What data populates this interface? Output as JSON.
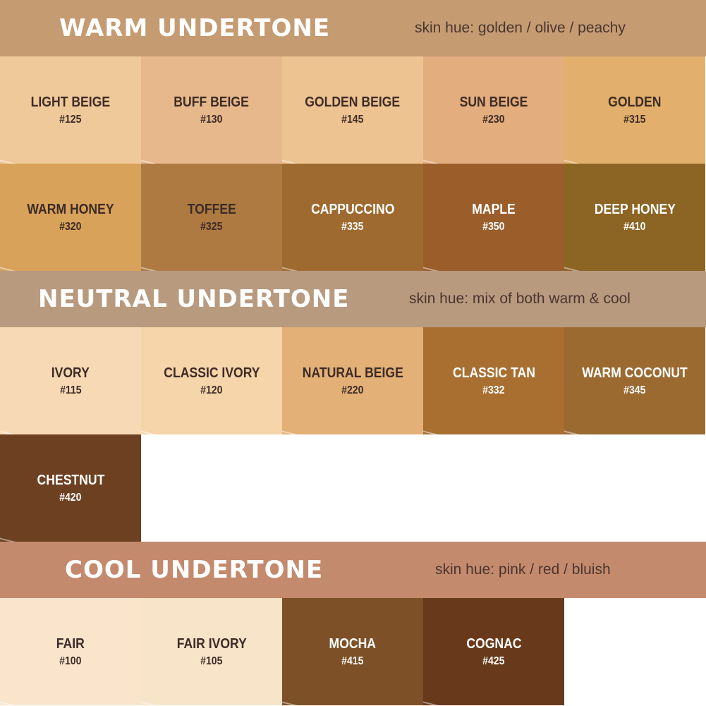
{
  "sections": [
    {
      "title": "WARM UNDERTONE",
      "hue": "skin hue: golden / olive / peachy",
      "color": "#c59b72",
      "rows": [
        [
          {
            "name": "LIGHT BEIGE",
            "code": "#125",
            "color": "#efc99a",
            "text": "dark"
          },
          {
            "name": "BUFF BEIGE",
            "code": "#130",
            "color": "#e6b88b",
            "text": "dark"
          },
          {
            "name": "GOLDEN BEIGE",
            "code": "#145",
            "color": "#edc391",
            "text": "dark"
          },
          {
            "name": "SUN BEIGE",
            "code": "#230",
            "color": "#e3ad7e",
            "text": "dark"
          },
          {
            "name": "GOLDEN",
            "code": "#315",
            "color": "#e2b06c",
            "text": "dark"
          }
        ],
        [
          {
            "name": "WARM HONEY",
            "code": "#320",
            "color": "#d9a25a",
            "text": "dark"
          },
          {
            "name": "TOFFEE",
            "code": "#325",
            "color": "#ae7a42",
            "text": "dark"
          },
          {
            "name": "CAPPUCCINO",
            "code": "#335",
            "color": "#9f6a30",
            "text": "light"
          },
          {
            "name": "MAPLE",
            "code": "#350",
            "color": "#9b5e2b",
            "text": "light"
          },
          {
            "name": "DEEP HONEY",
            "code": "#410",
            "color": "#8c6424",
            "text": "light"
          }
        ]
      ]
    },
    {
      "title": "NEUTRAL UNDERTONE",
      "hue": "skin hue: mix of both warm & cool",
      "color": "#b89a7f",
      "rows": [
        [
          {
            "name": "IVORY",
            "code": "#115",
            "color": "#f7dab5",
            "text": "dark"
          },
          {
            "name": "CLASSIC IVORY",
            "code": "#120",
            "color": "#f5d5a9",
            "text": "dark"
          },
          {
            "name": "NATURAL BEIGE",
            "code": "#220",
            "color": "#e3b078",
            "text": "dark"
          },
          {
            "name": "CLASSIC TAN",
            "code": "#332",
            "color": "#a86f31",
            "text": "light"
          },
          {
            "name": "WARM COCONUT",
            "code": "#345",
            "color": "#9b6a31",
            "text": "light"
          }
        ],
        [
          {
            "name": "CHESTNUT",
            "code": "#420",
            "color": "#6c4020",
            "text": "light"
          }
        ]
      ]
    },
    {
      "title": "COOL UNDERTONE",
      "hue": "skin hue: pink / red / bluish",
      "color": "#c48a6d",
      "rows": [
        [
          {
            "name": "FAIR",
            "code": "#100",
            "color": "#fae5cc",
            "text": "dark"
          },
          {
            "name": "FAIR IVORY",
            "code": "#105",
            "color": "#f8e4c8",
            "text": "dark"
          },
          {
            "name": "MOCHA",
            "code": "#415",
            "color": "#7e5027",
            "text": "light"
          },
          {
            "name": "COGNAC",
            "code": "#425",
            "color": "#683a1b",
            "text": "light"
          }
        ]
      ]
    }
  ]
}
